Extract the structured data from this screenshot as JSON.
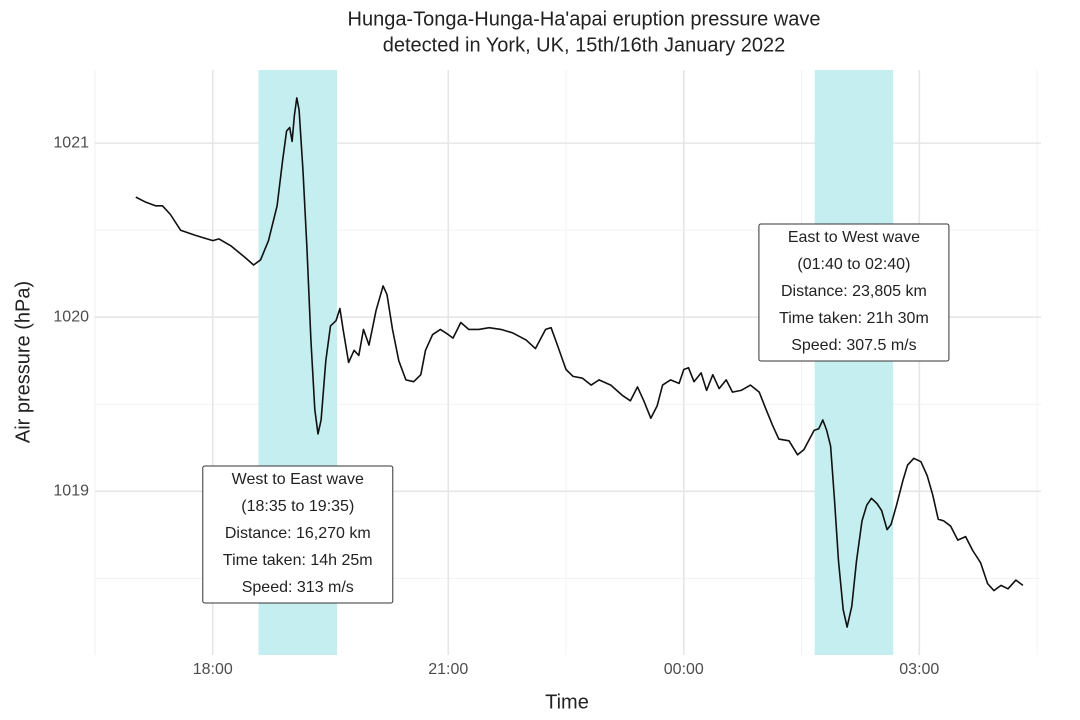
{
  "chart_data": {
    "type": "line",
    "title": [
      "Hunga-Tonga-Hunga-Ha'apai eruption pressure wave",
      "detected in York, UK, 15th/16th January 2022"
    ],
    "x_label": "Time",
    "y_label": "Air pressure (hPa)",
    "xlim": [
      16.5,
      28.55
    ],
    "xticks": [
      {
        "value": 18,
        "label": "18:00"
      },
      {
        "value": 21,
        "label": "21:00"
      },
      {
        "value": 24,
        "label": "00:00"
      },
      {
        "value": 27,
        "label": "03:00"
      }
    ],
    "xminor": [
      16.5,
      19.5,
      22.5,
      25.5,
      28.5
    ],
    "ylim": [
      1018.06,
      1021.42
    ],
    "yticks": [
      1019,
      1020,
      1021
    ],
    "yminor": [
      1018.5,
      1019.5,
      1020.5
    ],
    "grid": true,
    "highlight_color": "#c5eef0",
    "highlights": [
      {
        "x": [
          18.583,
          19.583
        ],
        "lines": [
          "West to East wave",
          "(18:35 to 19:35)",
          "Distance: 16,270 km",
          "Time taken: 14h 25m",
          "Speed: 313 m/s"
        ]
      },
      {
        "x": [
          25.667,
          26.667
        ],
        "lines": [
          "East to West wave",
          "(01:40 to 02:40)",
          "Distance: 23,805 km",
          "Time taken: 21h 30m",
          "Speed: 307.5 m/s"
        ]
      }
    ],
    "series": [
      {
        "name": "Air pressure",
        "color": "#111111",
        "x": [
          17.02,
          17.15,
          17.27,
          17.36,
          17.46,
          17.59,
          17.78,
          18.0,
          18.08,
          18.23,
          18.42,
          18.52,
          18.61,
          18.71,
          18.82,
          18.89,
          18.94,
          18.98,
          19.01,
          19.04,
          19.07,
          19.1,
          19.15,
          19.2,
          19.25,
          19.3,
          19.34,
          19.38,
          19.44,
          19.5,
          19.57,
          19.62,
          19.66,
          19.73,
          19.8,
          19.86,
          19.92,
          19.99,
          20.08,
          20.17,
          20.22,
          20.29,
          20.37,
          20.46,
          20.56,
          20.65,
          20.71,
          20.8,
          20.9,
          21.0,
          21.06,
          21.16,
          21.26,
          21.39,
          21.52,
          21.67,
          21.82,
          21.99,
          22.11,
          22.24,
          22.31,
          22.39,
          22.5,
          22.59,
          22.71,
          22.82,
          22.92,
          23.07,
          23.22,
          23.32,
          23.41,
          23.49,
          23.58,
          23.66,
          23.73,
          23.83,
          23.94,
          24.0,
          24.06,
          24.13,
          24.22,
          24.29,
          24.37,
          24.45,
          24.54,
          24.62,
          24.73,
          24.85,
          24.96,
          25.04,
          25.13,
          25.21,
          25.34,
          25.45,
          25.53,
          25.59,
          25.66,
          25.72,
          25.77,
          25.82,
          25.87,
          25.92,
          25.97,
          26.03,
          26.08,
          26.14,
          26.2,
          26.27,
          26.33,
          26.39,
          26.46,
          26.52,
          26.59,
          26.64,
          26.71,
          26.79,
          26.85,
          26.93,
          27.02,
          27.1,
          27.17,
          27.24,
          27.31,
          27.4,
          27.49,
          27.59,
          27.68,
          27.78,
          27.87,
          27.95,
          28.04,
          28.13,
          28.23,
          28.32
        ],
        "values": [
          1020.69,
          1020.66,
          1020.64,
          1020.64,
          1020.59,
          1020.5,
          1020.47,
          1020.44,
          1020.45,
          1020.41,
          1020.34,
          1020.3,
          1020.33,
          1020.44,
          1020.64,
          1020.9,
          1021.07,
          1021.09,
          1021.01,
          1021.16,
          1021.26,
          1021.19,
          1020.84,
          1020.39,
          1019.87,
          1019.47,
          1019.33,
          1019.41,
          1019.75,
          1019.95,
          1019.98,
          1020.05,
          1019.93,
          1019.74,
          1019.81,
          1019.78,
          1019.93,
          1019.84,
          1020.04,
          1020.18,
          1020.13,
          1019.93,
          1019.75,
          1019.64,
          1019.63,
          1019.67,
          1019.81,
          1019.9,
          1019.93,
          1019.9,
          1019.88,
          1019.97,
          1019.93,
          1019.93,
          1019.94,
          1019.93,
          1019.91,
          1019.87,
          1019.82,
          1019.93,
          1019.94,
          1019.84,
          1019.7,
          1019.66,
          1019.65,
          1019.61,
          1019.64,
          1019.61,
          1019.55,
          1019.52,
          1019.6,
          1019.52,
          1019.42,
          1019.49,
          1019.61,
          1019.64,
          1019.62,
          1019.7,
          1019.71,
          1019.63,
          1019.68,
          1019.58,
          1019.67,
          1019.59,
          1019.64,
          1019.57,
          1019.58,
          1019.61,
          1019.57,
          1019.48,
          1019.38,
          1019.3,
          1019.29,
          1019.21,
          1019.24,
          1019.29,
          1019.35,
          1019.36,
          1019.41,
          1019.35,
          1019.26,
          1018.95,
          1018.6,
          1018.32,
          1018.22,
          1018.34,
          1018.6,
          1018.83,
          1018.92,
          1018.96,
          1018.93,
          1018.89,
          1018.78,
          1018.81,
          1018.92,
          1019.06,
          1019.15,
          1019.19,
          1019.17,
          1019.09,
          1018.98,
          1018.84,
          1018.83,
          1018.8,
          1018.72,
          1018.74,
          1018.66,
          1018.59,
          1018.47,
          1018.43,
          1018.46,
          1018.44,
          1018.49,
          1018.46
        ]
      }
    ]
  }
}
